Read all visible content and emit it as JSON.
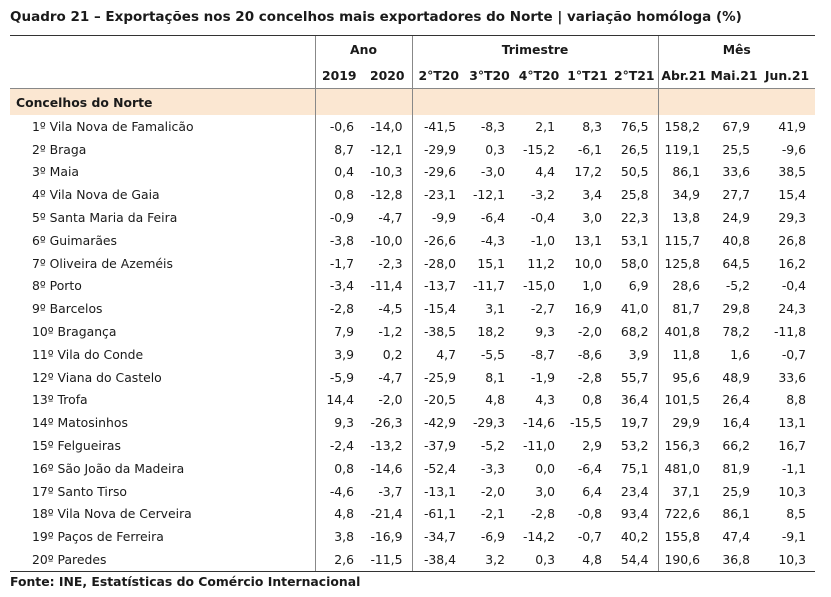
{
  "title": "Quadro 21 – Exportações nos 20 concelhos mais exportadores do Norte | variação homóloga (%)",
  "groups": {
    "ano": "Ano",
    "trimestre": "Trimestre",
    "mes": "Mês"
  },
  "columns": [
    "2019",
    "2020",
    "2°T20",
    "3°T20",
    "4°T20",
    "1°T21",
    "2°T21",
    "Abr.21",
    "Mai.21",
    "Jun.21"
  ],
  "section_label": "Concelhos do Norte",
  "rows": [
    {
      "name": "1º Vila Nova de Famalicão",
      "values": [
        "-0,6",
        "-14,0",
        "-41,5",
        "-8,3",
        "2,1",
        "8,3",
        "76,5",
        "158,2",
        "67,9",
        "41,9"
      ]
    },
    {
      "name": "2º Braga",
      "values": [
        "8,7",
        "-12,1",
        "-29,9",
        "0,3",
        "-15,2",
        "-6,1",
        "26,5",
        "119,1",
        "25,5",
        "-9,6"
      ]
    },
    {
      "name": "3º Maia",
      "values": [
        "0,4",
        "-10,3",
        "-29,6",
        "-3,0",
        "4,4",
        "17,2",
        "50,5",
        "86,1",
        "33,6",
        "38,5"
      ]
    },
    {
      "name": "4º Vila Nova de Gaia",
      "values": [
        "0,8",
        "-12,8",
        "-23,1",
        "-12,1",
        "-3,2",
        "3,4",
        "25,8",
        "34,9",
        "27,7",
        "15,4"
      ]
    },
    {
      "name": "5º Santa Maria da Feira",
      "values": [
        "-0,9",
        "-4,7",
        "-9,9",
        "-6,4",
        "-0,4",
        "3,0",
        "22,3",
        "13,8",
        "24,9",
        "29,3"
      ]
    },
    {
      "name": "6º Guimarães",
      "values": [
        "-3,8",
        "-10,0",
        "-26,6",
        "-4,3",
        "-1,0",
        "13,1",
        "53,1",
        "115,7",
        "40,8",
        "26,8"
      ]
    },
    {
      "name": "7º Oliveira de Azeméis",
      "values": [
        "-1,7",
        "-2,3",
        "-28,0",
        "15,1",
        "11,2",
        "10,0",
        "58,0",
        "125,8",
        "64,5",
        "16,2"
      ]
    },
    {
      "name": "8º Porto",
      "values": [
        "-3,4",
        "-11,4",
        "-13,7",
        "-11,7",
        "-15,0",
        "1,0",
        "6,9",
        "28,6",
        "-5,2",
        "-0,4"
      ]
    },
    {
      "name": "9º Barcelos",
      "values": [
        "-2,8",
        "-4,5",
        "-15,4",
        "3,1",
        "-2,7",
        "16,9",
        "41,0",
        "81,7",
        "29,8",
        "24,3"
      ]
    },
    {
      "name": "10º Bragança",
      "values": [
        "7,9",
        "-1,2",
        "-38,5",
        "18,2",
        "9,3",
        "-2,0",
        "68,2",
        "401,8",
        "78,2",
        "-11,8"
      ]
    },
    {
      "name": "11º Vila do Conde",
      "values": [
        "3,9",
        "0,2",
        "4,7",
        "-5,5",
        "-8,7",
        "-8,6",
        "3,9",
        "11,8",
        "1,6",
        "-0,7"
      ]
    },
    {
      "name": "12º Viana do Castelo",
      "values": [
        "-5,9",
        "-4,7",
        "-25,9",
        "8,1",
        "-1,9",
        "-2,8",
        "55,7",
        "95,6",
        "48,9",
        "33,6"
      ]
    },
    {
      "name": "13º Trofa",
      "values": [
        "14,4",
        "-2,0",
        "-20,5",
        "4,8",
        "4,3",
        "0,8",
        "36,4",
        "101,5",
        "26,4",
        "8,8"
      ]
    },
    {
      "name": "14º Matosinhos",
      "values": [
        "9,3",
        "-26,3",
        "-42,9",
        "-29,3",
        "-14,6",
        "-15,5",
        "19,7",
        "29,9",
        "16,4",
        "13,1"
      ]
    },
    {
      "name": "15º Felgueiras",
      "values": [
        "-2,4",
        "-13,2",
        "-37,9",
        "-5,2",
        "-11,0",
        "2,9",
        "53,2",
        "156,3",
        "66,2",
        "16,7"
      ]
    },
    {
      "name": "16º São João da Madeira",
      "values": [
        "0,8",
        "-14,6",
        "-52,4",
        "-3,3",
        "0,0",
        "-6,4",
        "75,1",
        "481,0",
        "81,9",
        "-1,1"
      ]
    },
    {
      "name": "17º Santo Tirso",
      "values": [
        "-4,6",
        "-3,7",
        "-13,1",
        "-2,0",
        "3,0",
        "6,4",
        "23,4",
        "37,1",
        "25,9",
        "10,3"
      ]
    },
    {
      "name": "18º Vila Nova de Cerveira",
      "values": [
        "4,8",
        "-21,4",
        "-61,1",
        "-2,1",
        "-2,8",
        "-0,8",
        "93,4",
        "722,6",
        "86,1",
        "8,5"
      ]
    },
    {
      "name": "19º Paços de Ferreira",
      "values": [
        "3,8",
        "-16,9",
        "-34,7",
        "-6,9",
        "-14,2",
        "-0,7",
        "40,2",
        "155,8",
        "47,4",
        "-9,1"
      ]
    },
    {
      "name": "20º Paredes",
      "values": [
        "2,6",
        "-11,5",
        "-38,4",
        "3,2",
        "0,3",
        "4,8",
        "54,4",
        "190,6",
        "36,8",
        "10,3"
      ]
    }
  ],
  "source": "Fonte: INE, Estatísticas do Comércio Internacional",
  "colors": {
    "section_fill": "#fbe7d2",
    "rule": "#333333"
  }
}
